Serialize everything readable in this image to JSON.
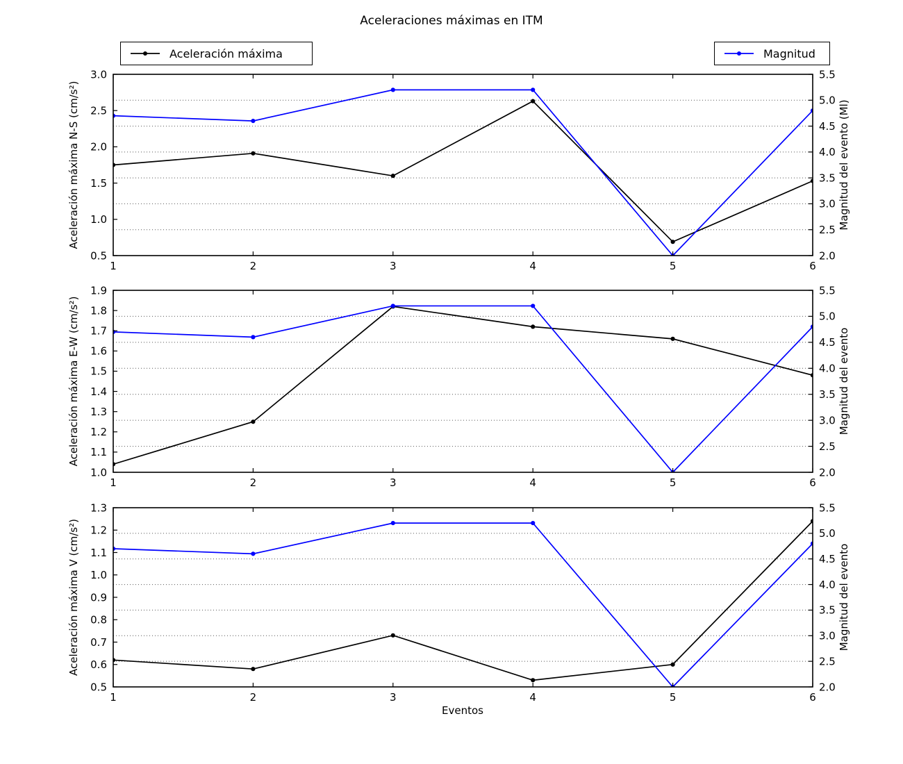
{
  "title": "Aceleraciones máximas en ITM",
  "legend_left": {
    "label": "Aceleración máxima",
    "color": "#000000"
  },
  "legend_right": {
    "label": "Magnitud",
    "color": "#0000ff"
  },
  "xlabel": "Eventos",
  "colors": {
    "acceleration_line": "#000000",
    "magnitude_line": "#0000ff",
    "grid": "#555555",
    "axes_frame": "#000000",
    "background": "#ffffff"
  },
  "chart_data": [
    {
      "type": "line",
      "subplot": "N-S",
      "x": [
        1,
        2,
        3,
        4,
        5,
        6
      ],
      "xticks": [
        "1",
        "2",
        "3",
        "4",
        "5",
        "6"
      ],
      "xlim": [
        1,
        6
      ],
      "ylabel_left": "Aceleración máxima N-S (cm/s²)",
      "ylim_left": [
        0.5,
        3.0
      ],
      "yticks_left": [
        "0.5",
        "1.0",
        "1.5",
        "2.0",
        "2.5",
        "3.0"
      ],
      "ylabel_right": "Magnitud del evento (Ml)",
      "ylim_right": [
        2.0,
        5.5
      ],
      "yticks_right": [
        "2.0",
        "2.5",
        "3.0",
        "3.5",
        "4.0",
        "4.5",
        "5.0",
        "5.5"
      ],
      "grid": {
        "horizontal_dotted": true,
        "at": "right_axis_ticks"
      },
      "series": [
        {
          "name": "Aceleración máxima",
          "axis": "left",
          "color": "#000000",
          "marker": "dot",
          "values": [
            1.75,
            1.91,
            1.6,
            2.63,
            0.69,
            1.53
          ]
        },
        {
          "name": "Magnitud",
          "axis": "right",
          "color": "#0000ff",
          "marker": "dot",
          "values": [
            4.7,
            4.6,
            5.2,
            5.2,
            2.0,
            4.8
          ]
        }
      ]
    },
    {
      "type": "line",
      "subplot": "E-W",
      "x": [
        1,
        2,
        3,
        4,
        5,
        6
      ],
      "xticks": [
        "1",
        "2",
        "3",
        "4",
        "5",
        "6"
      ],
      "xlim": [
        1,
        6
      ],
      "ylabel_left": "Aceleración máxima E-W (cm/s²)",
      "ylim_left": [
        1.0,
        1.9
      ],
      "yticks_left": [
        "1.0",
        "1.1",
        "1.2",
        "1.3",
        "1.4",
        "1.5",
        "1.6",
        "1.7",
        "1.8",
        "1.9"
      ],
      "ylabel_right": "Magnitud del evento",
      "ylim_right": [
        2.0,
        5.5
      ],
      "yticks_right": [
        "2.0",
        "2.5",
        "3.0",
        "3.5",
        "4.0",
        "4.5",
        "5.0",
        "5.5"
      ],
      "grid": {
        "horizontal_dotted": true,
        "at": "right_axis_ticks"
      },
      "series": [
        {
          "name": "Aceleración máxima",
          "axis": "left",
          "color": "#000000",
          "marker": "dot",
          "values": [
            1.04,
            1.25,
            1.82,
            1.72,
            1.66,
            1.48
          ]
        },
        {
          "name": "Magnitud",
          "axis": "right",
          "color": "#0000ff",
          "marker": "dot",
          "values": [
            4.7,
            4.6,
            5.2,
            5.2,
            2.0,
            4.8
          ]
        }
      ]
    },
    {
      "type": "line",
      "subplot": "V",
      "x": [
        1,
        2,
        3,
        4,
        5,
        6
      ],
      "xticks": [
        "1",
        "2",
        "3",
        "4",
        "5",
        "6"
      ],
      "xlim": [
        1,
        6
      ],
      "ylabel_left": "Aceleración máxima V (cm/s²)",
      "ylim_left": [
        0.5,
        1.3
      ],
      "yticks_left": [
        "0.5",
        "0.6",
        "0.7",
        "0.8",
        "0.9",
        "1.0",
        "1.1",
        "1.2",
        "1.3"
      ],
      "ylabel_right": "Magnitud del evento",
      "ylim_right": [
        2.0,
        5.5
      ],
      "yticks_right": [
        "2.0",
        "2.5",
        "3.0",
        "3.5",
        "4.0",
        "4.5",
        "5.0",
        "5.5"
      ],
      "grid": {
        "horizontal_dotted": true,
        "at": "right_axis_ticks"
      },
      "series": [
        {
          "name": "Aceleración máxima",
          "axis": "left",
          "color": "#000000",
          "marker": "dot",
          "values": [
            0.62,
            0.58,
            0.73,
            0.53,
            0.6,
            1.24
          ]
        },
        {
          "name": "Magnitud",
          "axis": "right",
          "color": "#0000ff",
          "marker": "dot",
          "values": [
            4.7,
            4.6,
            5.2,
            5.2,
            2.0,
            4.8
          ]
        }
      ]
    }
  ]
}
